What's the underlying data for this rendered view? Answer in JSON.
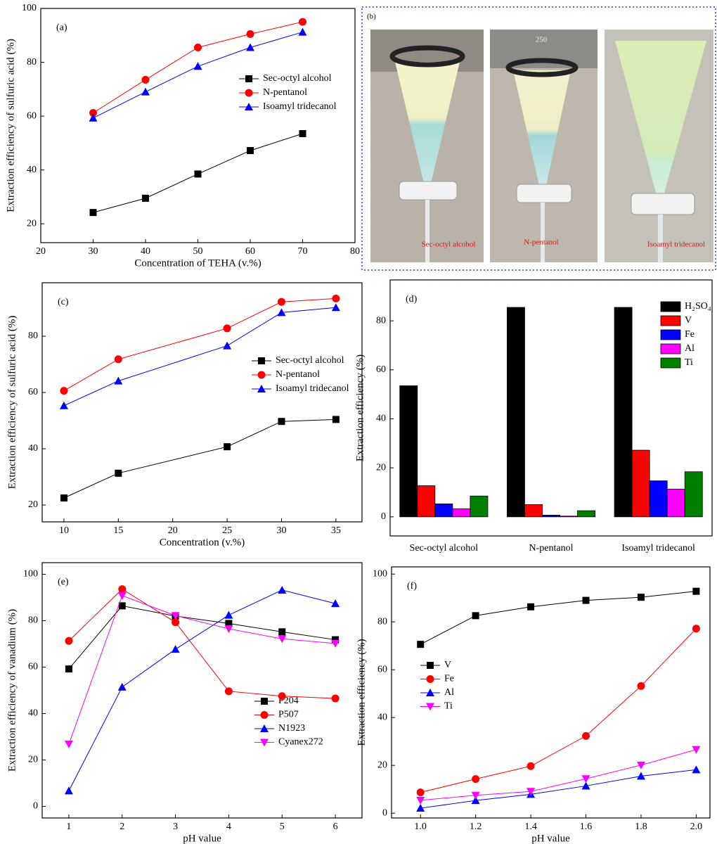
{
  "chart_data": [
    {
      "type": "line",
      "panel_label": "(a)",
      "x_label": "Concentration of TEHA (v.%)",
      "y_label": "Extraction efficiency of sulfuric acid (%)",
      "x": [
        30,
        40,
        50,
        60,
        70
      ],
      "xlim": [
        20,
        80
      ],
      "xticks": [
        20,
        30,
        40,
        50,
        60,
        70,
        80
      ],
      "ylim": [
        13,
        100
      ],
      "yticks": [
        20,
        40,
        60,
        80,
        100
      ],
      "series": [
        {
          "name": "Sec-octyl alcohol",
          "color": "#000000",
          "marker": "square",
          "values": [
            24.2,
            29.5,
            38.5,
            47.2,
            53.5
          ]
        },
        {
          "name": "N-pentanol",
          "color": "#ff0000",
          "marker": "circle",
          "values": [
            61.2,
            73.5,
            85.5,
            90.5,
            95
          ]
        },
        {
          "name": "Isoamyl tridecanol",
          "color": "#0000ff",
          "marker": "triangle-up",
          "values": [
            59.3,
            69,
            78.5,
            85.5,
            91.2
          ]
        }
      ]
    },
    {
      "type": "line",
      "panel_label": "(c)",
      "x_label": "Concentration (v.%)",
      "y_label": "Extraction efficiency of sulfuric acid (%)",
      "x": [
        10,
        15,
        25,
        30,
        35
      ],
      "xlim": [
        8,
        37.4
      ],
      "xticks": [
        10,
        15,
        20,
        25,
        30,
        35
      ],
      "ylim": [
        14,
        99
      ],
      "yticks": [
        20,
        40,
        60,
        80
      ],
      "series": [
        {
          "name": "Sec-octyl alcohol",
          "color": "#000000",
          "marker": "square",
          "values": [
            22.5,
            31.3,
            40.7,
            49.7,
            50.4
          ]
        },
        {
          "name": "N-pentanol",
          "color": "#ff0000",
          "marker": "circle",
          "values": [
            60.6,
            71.8,
            82.8,
            92.2,
            93.4
          ]
        },
        {
          "name": "Isoamyl tridecanol",
          "color": "#0000ff",
          "marker": "triangle-up",
          "values": [
            55.3,
            64.1,
            76.6,
            88.4,
            90.2
          ]
        }
      ]
    },
    {
      "type": "bar",
      "panel_label": "(d)",
      "y_label": "Extraction efficiency (%)",
      "categories": [
        "Sec-octyl alcohol",
        "N-pentanol",
        "Isoamyl tridecanol"
      ],
      "ylim": [
        -7.8,
        96.7
      ],
      "yticks": [
        0,
        20,
        40,
        60,
        80
      ],
      "series": [
        {
          "name": "H₂SO₄",
          "color": "#000000",
          "values": [
            53.5,
            85.5,
            85.5
          ]
        },
        {
          "name": "V",
          "color": "#ff0000",
          "values": [
            12.7,
            5,
            27.2
          ]
        },
        {
          "name": "Fe",
          "color": "#0000ff",
          "values": [
            5.3,
            0.7,
            14.7
          ]
        },
        {
          "name": "Al",
          "color": "#ff00ff",
          "values": [
            3.3,
            0.3,
            11.3
          ]
        },
        {
          "name": "Ti",
          "color": "#008000",
          "values": [
            8.5,
            2.5,
            18.4
          ]
        }
      ]
    },
    {
      "type": "line",
      "panel_label": "(e)",
      "x_label": "pH value",
      "y_label": "Extraction efficiency of vanadium (%)",
      "x": [
        1,
        2,
        3,
        4,
        5,
        6
      ],
      "xlim": [
        0.5,
        6.5
      ],
      "xticks": [
        1,
        2,
        3,
        4,
        5,
        6
      ],
      "ylim": [
        -5,
        105
      ],
      "yticks": [
        0,
        20,
        40,
        60,
        80,
        100
      ],
      "series": [
        {
          "name": "P204",
          "color": "#000000",
          "marker": "square",
          "values": [
            59.2,
            86.4,
            82,
            78.8,
            75.2,
            71.8
          ]
        },
        {
          "name": "P507",
          "color": "#ff0000",
          "marker": "circle",
          "values": [
            71.3,
            93.6,
            79.3,
            49.6,
            47.5,
            46.5
          ]
        },
        {
          "name": "N1923",
          "color": "#0000ff",
          "marker": "triangle-up",
          "values": [
            6.7,
            51.4,
            67.7,
            82.4,
            93.2,
            87.4
          ]
        },
        {
          "name": "Cyanex272",
          "color": "#ff00ff",
          "marker": "triangle-down",
          "values": [
            26.8,
            90.8,
            82.2,
            76.5,
            72.2,
            70.2
          ]
        }
      ]
    },
    {
      "type": "line",
      "panel_label": "(f)",
      "x_label": "pH value",
      "y_label": "Extraction efficiency (%)",
      "x": [
        1.0,
        1.2,
        1.4,
        1.6,
        1.8,
        2.0
      ],
      "xlim": [
        0.895,
        2.05
      ],
      "xticks": [
        {
          "value": 1.0,
          "label": "1.0"
        },
        1.2,
        1.4,
        1.6,
        1.8,
        {
          "value": 2.0,
          "label": "2.0"
        }
      ],
      "ylim": [
        -2,
        103
      ],
      "yticks": [
        0,
        20,
        40,
        60,
        80,
        100
      ],
      "series": [
        {
          "name": "V",
          "color": "#000000",
          "marker": "square",
          "values": [
            70.6,
            82.6,
            86.3,
            89,
            90.3,
            92.8
          ]
        },
        {
          "name": "Fe",
          "color": "#ff0000",
          "marker": "circle",
          "values": [
            8.7,
            14.3,
            19.7,
            32.3,
            53.2,
            77.2
          ]
        },
        {
          "name": "Al",
          "color": "#0000ff",
          "marker": "triangle-up",
          "values": [
            2.1,
            5.3,
            7.9,
            11.4,
            15.5,
            18.2
          ]
        },
        {
          "name": "Ti",
          "color": "#ff00ff",
          "marker": "triangle-down",
          "values": [
            5.4,
            7.5,
            9.1,
            14.4,
            20.1,
            26.6
          ]
        }
      ]
    }
  ],
  "photo_panel": {
    "label": "(b)",
    "beaker_mark": "250",
    "captions": [
      "Sec-octyl alcohol",
      "N-pentanol",
      "Isoamyl tridecanol"
    ]
  }
}
